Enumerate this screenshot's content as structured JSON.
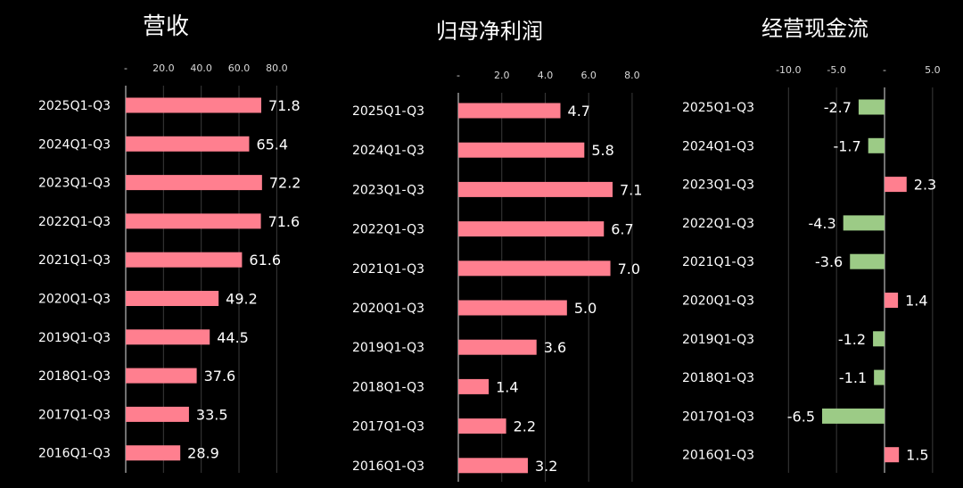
{
  "colors": {
    "background": "#000000",
    "positive_bar": "#FF7F8F",
    "negative_bar": "#9CCB86",
    "text": "#FFFFFF",
    "axis_text": "#D9D9D9",
    "grid": "#3A3A3A",
    "axis_line": "#E0E0E0"
  },
  "chart_data": [
    {
      "type": "bar",
      "orientation": "horizontal",
      "title": "营收",
      "categories": [
        "2025Q1-Q3",
        "2024Q1-Q3",
        "2023Q1-Q3",
        "2022Q1-Q3",
        "2021Q1-Q3",
        "2020Q1-Q3",
        "2019Q1-Q3",
        "2018Q1-Q3",
        "2017Q1-Q3",
        "2016Q1-Q3"
      ],
      "values": [
        71.8,
        65.4,
        72.2,
        71.6,
        61.6,
        49.2,
        44.5,
        37.6,
        33.5,
        28.9
      ],
      "value_labels": [
        "71.8",
        "65.4",
        "72.2",
        "71.6",
        "61.6",
        "49.2",
        "44.5",
        "37.6",
        "33.5",
        "28.9"
      ],
      "xlim": [
        0,
        80
      ],
      "ticks": [
        0,
        20,
        40,
        60,
        80
      ],
      "tick_labels": [
        "-",
        "20.0",
        "40.0",
        "60.0",
        "80.0"
      ],
      "grid": true
    },
    {
      "type": "bar",
      "orientation": "horizontal",
      "title": "归母净利润",
      "categories": [
        "2025Q1-Q3",
        "2024Q1-Q3",
        "2023Q1-Q3",
        "2022Q1-Q3",
        "2021Q1-Q3",
        "2020Q1-Q3",
        "2019Q1-Q3",
        "2018Q1-Q3",
        "2017Q1-Q3",
        "2016Q1-Q3"
      ],
      "values": [
        4.7,
        5.8,
        7.1,
        6.7,
        7.0,
        5.0,
        3.6,
        1.4,
        2.2,
        3.2
      ],
      "value_labels": [
        "4.7",
        "5.8",
        "7.1",
        "6.7",
        "7.0",
        "5.0",
        "3.6",
        "1.4",
        "2.2",
        "3.2"
      ],
      "xlim": [
        0,
        8
      ],
      "ticks": [
        0,
        2,
        4,
        6,
        8
      ],
      "tick_labels": [
        "-",
        "2.0",
        "4.0",
        "6.0",
        "8.0"
      ],
      "grid": true
    },
    {
      "type": "bar",
      "orientation": "horizontal",
      "title": "经营现金流",
      "categories": [
        "2025Q1-Q3",
        "2024Q1-Q3",
        "2023Q1-Q3",
        "2022Q1-Q3",
        "2021Q1-Q3",
        "2020Q1-Q3",
        "2019Q1-Q3",
        "2018Q1-Q3",
        "2017Q1-Q3",
        "2016Q1-Q3"
      ],
      "values": [
        -2.7,
        -1.7,
        2.3,
        -4.3,
        -3.6,
        1.4,
        -1.2,
        -1.1,
        -6.5,
        1.5
      ],
      "value_labels": [
        "-2.7",
        "-1.7",
        "2.3",
        "-4.3",
        "-3.6",
        "1.4",
        "-1.2",
        "-1.1",
        "-6.5",
        "1.5"
      ],
      "xlim": [
        -10,
        5
      ],
      "ticks": [
        -10,
        -5,
        0,
        5
      ],
      "tick_labels": [
        "-10.0",
        "-5.0",
        "-",
        "5.0"
      ],
      "grid": true
    }
  ]
}
